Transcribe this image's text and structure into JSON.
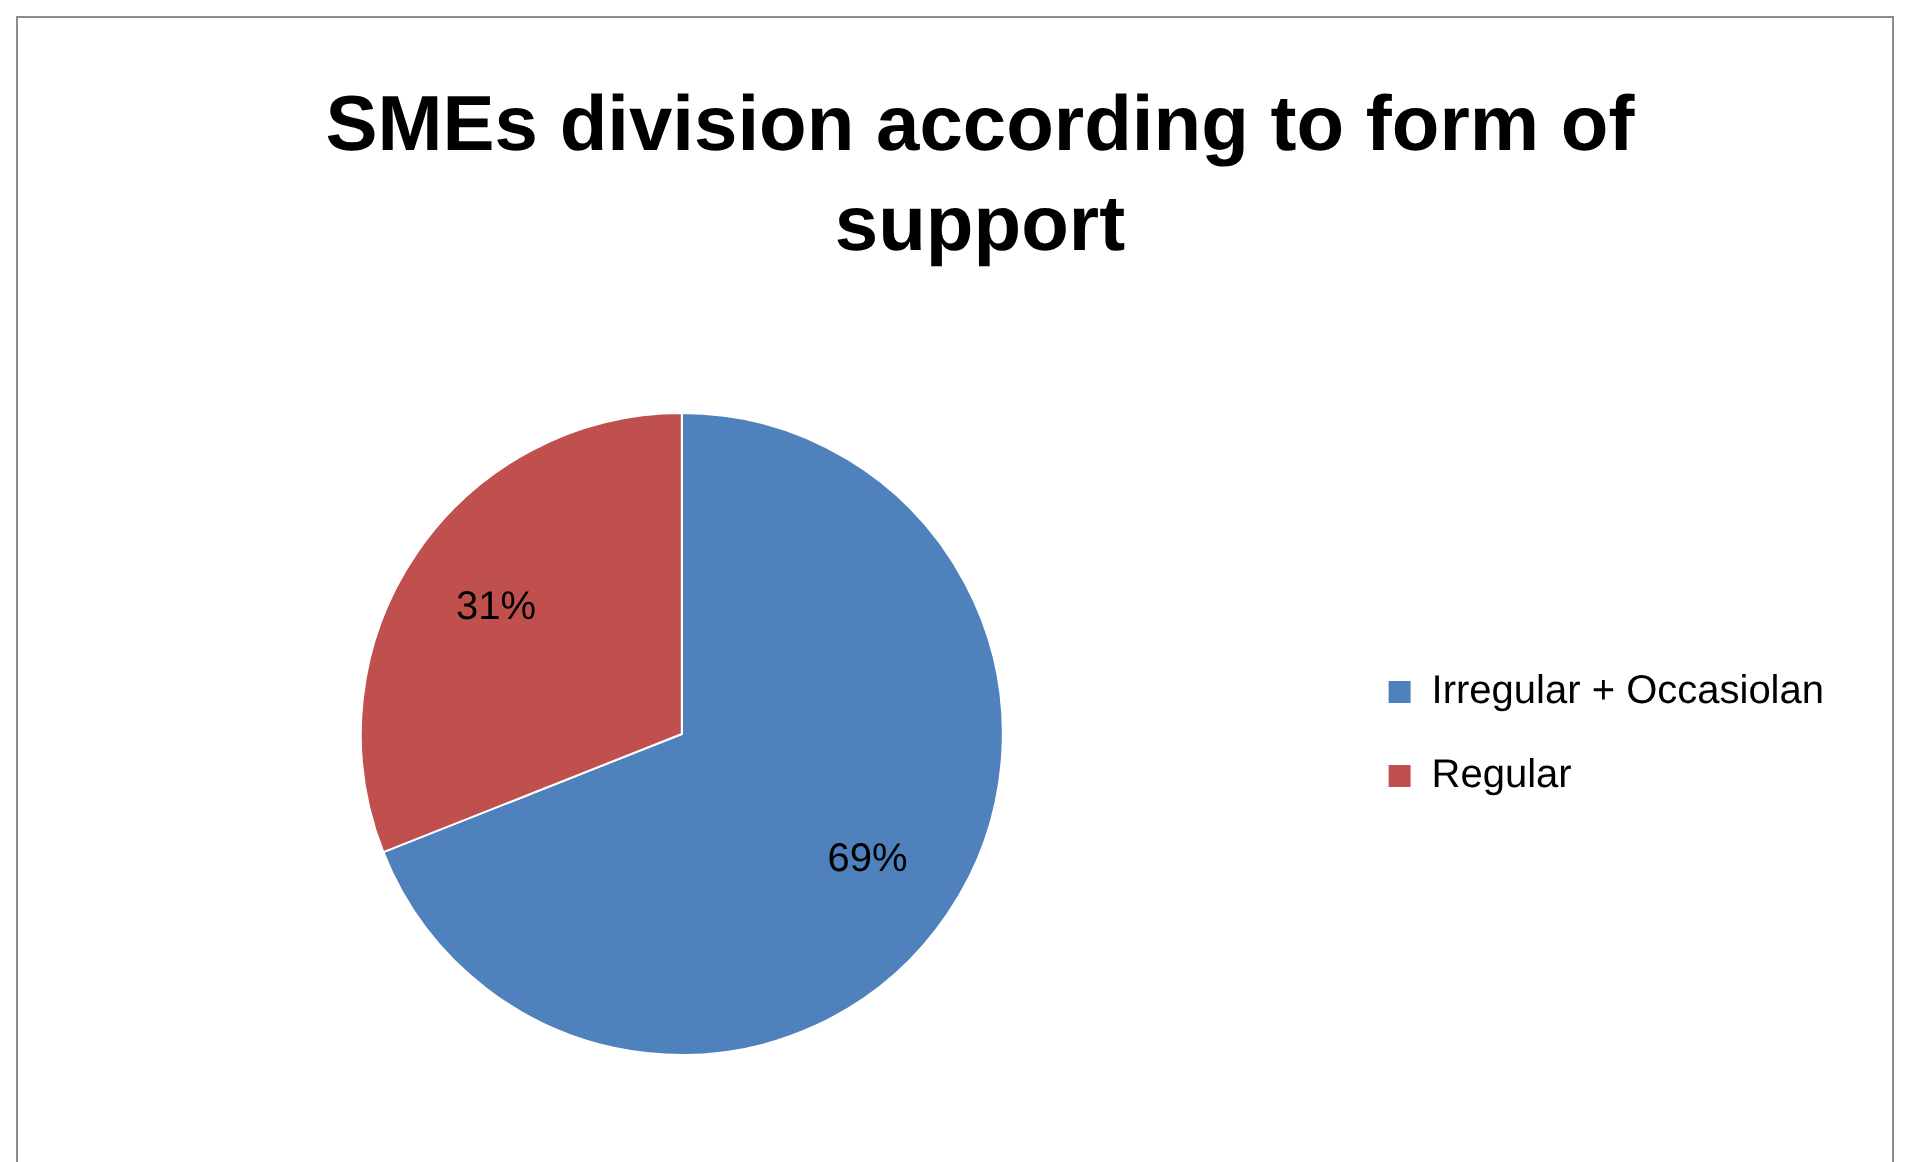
{
  "chart_data": {
    "type": "pie",
    "title": "SMEs division according to form of support",
    "categories": [
      "Irregular + Occasiolan",
      "Regular"
    ],
    "values": [
      69,
      31
    ],
    "colors": [
      "#4f81bd",
      "#c0504d"
    ],
    "value_labels": [
      "69%",
      "31%"
    ],
    "legend": "right"
  }
}
